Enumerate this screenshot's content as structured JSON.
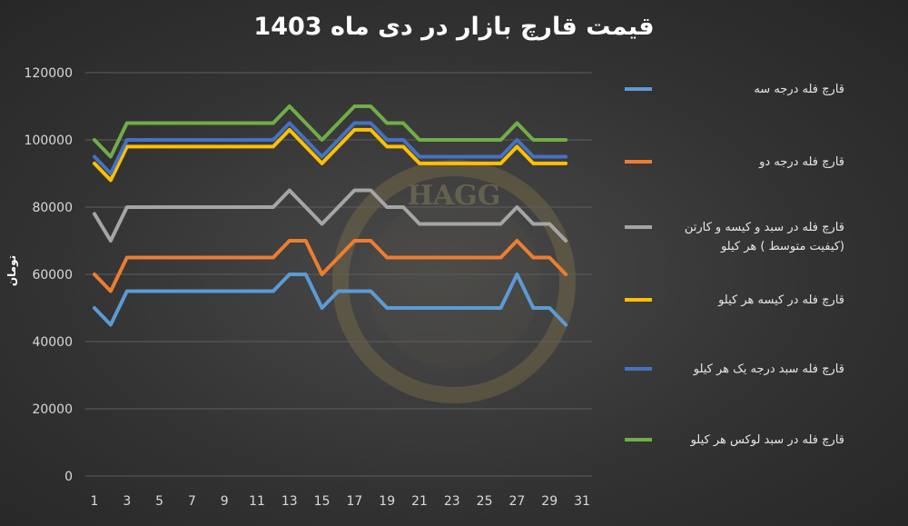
{
  "chart_data": {
    "type": "line",
    "title": "قیمت قارچ بازار در دی ماه 1403",
    "xlabel": "",
    "ylabel": "تومان",
    "x": [
      1,
      2,
      3,
      4,
      5,
      6,
      7,
      8,
      9,
      10,
      11,
      12,
      13,
      14,
      15,
      16,
      17,
      18,
      19,
      20,
      21,
      22,
      23,
      24,
      25,
      26,
      27,
      28,
      29,
      30
    ],
    "x_ticks": [
      "1",
      "3",
      "5",
      "7",
      "9",
      "11",
      "13",
      "15",
      "17",
      "19",
      "21",
      "23",
      "25",
      "27",
      "29",
      "31"
    ],
    "xlim": [
      1,
      31
    ],
    "ylim": [
      0,
      120000
    ],
    "y_ticks": [
      "0",
      "20000",
      "40000",
      "60000",
      "80000",
      "100000",
      "120000"
    ],
    "grid": true,
    "legend_position": "right",
    "series": [
      {
        "name": "قارچ فله درجه سه",
        "color": "#5b9bd5",
        "values": [
          50000,
          45000,
          55000,
          55000,
          55000,
          55000,
          55000,
          55000,
          55000,
          55000,
          55000,
          55000,
          60000,
          60000,
          50000,
          55000,
          55000,
          55000,
          50000,
          50000,
          50000,
          50000,
          50000,
          50000,
          50000,
          50000,
          60000,
          50000,
          50000,
          45000
        ]
      },
      {
        "name": "قارچ فله درجه دو",
        "color": "#ed7d31",
        "values": [
          60000,
          55000,
          65000,
          65000,
          65000,
          65000,
          65000,
          65000,
          65000,
          65000,
          65000,
          65000,
          70000,
          70000,
          60000,
          65000,
          70000,
          70000,
          65000,
          65000,
          65000,
          65000,
          65000,
          65000,
          65000,
          65000,
          70000,
          65000,
          65000,
          60000
        ]
      },
      {
        "name": "قارچ فله در سبد و کیسه و کارتن (کیفیت متوسط ) هر کیلو",
        "color": "#a5a5a5",
        "values": [
          78000,
          70000,
          80000,
          80000,
          80000,
          80000,
          80000,
          80000,
          80000,
          80000,
          80000,
          80000,
          85000,
          80000,
          75000,
          80000,
          85000,
          85000,
          80000,
          80000,
          75000,
          75000,
          75000,
          75000,
          75000,
          75000,
          80000,
          75000,
          75000,
          70000
        ]
      },
      {
        "name": "قارچ فله در کیسه هر کیلو",
        "color": "#ffc000",
        "values": [
          93000,
          88000,
          98000,
          98000,
          98000,
          98000,
          98000,
          98000,
          98000,
          98000,
          98000,
          98000,
          103000,
          98000,
          93000,
          98000,
          103000,
          103000,
          98000,
          98000,
          93000,
          93000,
          93000,
          93000,
          93000,
          93000,
          98000,
          93000,
          93000,
          93000
        ]
      },
      {
        "name": "قارچ فله سبد درجه یک هر کیلو",
        "color": "#4472c4",
        "values": [
          95000,
          90000,
          100000,
          100000,
          100000,
          100000,
          100000,
          100000,
          100000,
          100000,
          100000,
          100000,
          105000,
          100000,
          95000,
          100000,
          105000,
          105000,
          100000,
          100000,
          95000,
          95000,
          95000,
          95000,
          95000,
          95000,
          100000,
          95000,
          95000,
          95000
        ]
      },
      {
        "name": "قارچ فله در سبد لوکس هر کیلو",
        "color": "#70ad47",
        "values": [
          100000,
          95000,
          105000,
          105000,
          105000,
          105000,
          105000,
          105000,
          105000,
          105000,
          105000,
          105000,
          110000,
          105000,
          100000,
          105000,
          110000,
          110000,
          105000,
          105000,
          100000,
          100000,
          100000,
          100000,
          100000,
          100000,
          105000,
          100000,
          100000,
          100000
        ]
      }
    ]
  }
}
